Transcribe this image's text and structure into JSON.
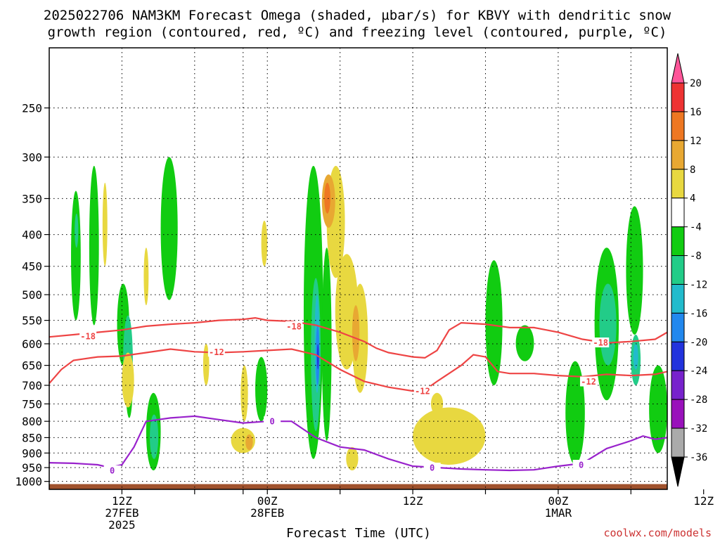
{
  "chart_data": {
    "type": "heatmap",
    "title_lines": [
      "2025022706 NAM3KM Forecast Omega (shaded, µbar/s) for KBVY with dendritic snow",
      "growth region (contoured, red, ºC) and freezing level (contoured, purple, ºC)"
    ],
    "xlabel": "Forecast Time (UTC)",
    "credit": "coolwx.com/models",
    "x_range_hours": [
      6,
      57
    ],
    "x_ticks": [
      {
        "hour": 12,
        "lines": [
          "12Z",
          "27FEB",
          "2025"
        ]
      },
      {
        "hour": 18,
        "lines": []
      },
      {
        "hour": 22,
        "lines": []
      },
      {
        "hour": 24,
        "lines": [
          "00Z",
          "28FEB"
        ]
      },
      {
        "hour": 30,
        "lines": []
      },
      {
        "hour": 36,
        "lines": [
          "12Z"
        ]
      },
      {
        "hour": 42,
        "lines": []
      },
      {
        "hour": 48,
        "lines": [
          "00Z",
          "1MAR"
        ]
      },
      {
        "hour": 54,
        "lines": []
      },
      {
        "hour": 60,
        "lines": [
          "12Z"
        ]
      }
    ],
    "y_axis": "pressure (hPa, log scale)",
    "y_range_hpa": [
      200,
      1030
    ],
    "y_ticks": [
      250,
      300,
      350,
      400,
      450,
      500,
      550,
      600,
      650,
      700,
      750,
      800,
      850,
      900,
      950,
      1000
    ],
    "grid": true,
    "colorbar": {
      "levels": [
        "20",
        "16",
        "12",
        "8",
        "4",
        "-4",
        "-8",
        "-12",
        "-16",
        "-20",
        "-24",
        "-28",
        "-32",
        "-36"
      ],
      "colors": [
        "#ff5599",
        "#ee3333",
        "#ee7722",
        "#e8a832",
        "#e8d840",
        "#ffffff",
        "#11cc11",
        "#22cc88",
        "#22bbcc",
        "#2288ee",
        "#2233dd",
        "#7722cc",
        "#9911bb",
        "#aaaaaa",
        "#000000"
      ]
    },
    "shaded_regions": [
      {
        "color": "#11cc11",
        "t": [
          7.8,
          8.6
        ],
        "p": [
          340,
          550
        ]
      },
      {
        "color": "#11cc11",
        "t": [
          9.3,
          10.1
        ],
        "p": [
          310,
          560
        ]
      },
      {
        "color": "#11cc11",
        "t": [
          11.6,
          12.6
        ],
        "p": [
          480,
          650
        ]
      },
      {
        "color": "#11cc11",
        "t": [
          12.3,
          12.9
        ],
        "p": [
          600,
          790
        ]
      },
      {
        "color": "#11cc11",
        "t": [
          14.0,
          15.2
        ],
        "p": [
          720,
          960
        ]
      },
      {
        "color": "#11cc11",
        "t": [
          15.2,
          16.6
        ],
        "p": [
          300,
          510
        ]
      },
      {
        "color": "#11cc11",
        "t": [
          23.0,
          24.0
        ],
        "p": [
          630,
          800
        ]
      },
      {
        "color": "#11cc11",
        "t": [
          27.0,
          28.6
        ],
        "p": [
          310,
          920
        ]
      },
      {
        "color": "#11cc11",
        "t": [
          28.5,
          29.3
        ],
        "p": [
          420,
          860
        ]
      },
      {
        "color": "#11cc11",
        "t": [
          42.0,
          43.4
        ],
        "p": [
          440,
          700
        ]
      },
      {
        "color": "#11cc11",
        "t": [
          44.5,
          46.0
        ],
        "p": [
          560,
          640
        ]
      },
      {
        "color": "#11cc11",
        "t": [
          48.6,
          50.2
        ],
        "p": [
          640,
          940
        ]
      },
      {
        "color": "#11cc11",
        "t": [
          51.0,
          53.0
        ],
        "p": [
          420,
          740
        ]
      },
      {
        "color": "#11cc11",
        "t": [
          53.6,
          55.0
        ],
        "p": [
          360,
          580
        ]
      },
      {
        "color": "#11cc11",
        "t": [
          55.5,
          57.0
        ],
        "p": [
          650,
          900
        ]
      },
      {
        "color": "#22cc88",
        "t": [
          8.1,
          8.4
        ],
        "p": [
          370,
          420
        ]
      },
      {
        "color": "#22cc88",
        "t": [
          12.1,
          12.9
        ],
        "p": [
          540,
          760
        ]
      },
      {
        "color": "#22cc88",
        "t": [
          14.3,
          15.0
        ],
        "p": [
          780,
          920
        ]
      },
      {
        "color": "#22cc88",
        "t": [
          27.6,
          28.4
        ],
        "p": [
          470,
          830
        ]
      },
      {
        "color": "#22cc88",
        "t": [
          51.4,
          52.8
        ],
        "p": [
          480,
          650
        ]
      },
      {
        "color": "#22cc88",
        "t": [
          54.0,
          54.8
        ],
        "p": [
          580,
          700
        ]
      },
      {
        "color": "#22bbcc",
        "t": [
          12.3,
          12.8
        ],
        "p": [
          650,
          720
        ]
      },
      {
        "color": "#22bbcc",
        "t": [
          27.9,
          28.3
        ],
        "p": [
          500,
          720
        ]
      },
      {
        "color": "#22bbcc",
        "t": [
          54.2,
          54.6
        ],
        "p": [
          600,
          660
        ]
      },
      {
        "color": "#2288ee",
        "t": [
          28.0,
          28.3
        ],
        "p": [
          560,
          700
        ]
      },
      {
        "color": "#2233dd",
        "t": [
          28.1,
          28.25
        ],
        "p": [
          600,
          660
        ]
      },
      {
        "color": "#e8d840",
        "t": [
          10.4,
          10.8
        ],
        "p": [
          330,
          450
        ]
      },
      {
        "color": "#e8d840",
        "t": [
          13.8,
          14.2
        ],
        "p": [
          420,
          520
        ]
      },
      {
        "color": "#e8d840",
        "t": [
          18.7,
          19.2
        ],
        "p": [
          600,
          700
        ]
      },
      {
        "color": "#e8d840",
        "t": [
          21.8,
          22.4
        ],
        "p": [
          650,
          800
        ]
      },
      {
        "color": "#e8d840",
        "t": [
          23.5,
          24.0
        ],
        "p": [
          380,
          450
        ]
      },
      {
        "color": "#e8d840",
        "t": [
          28.9,
          30.4
        ],
        "p": [
          310,
          470
        ]
      },
      {
        "color": "#e8d840",
        "t": [
          29.6,
          31.5
        ],
        "p": [
          430,
          660
        ]
      },
      {
        "color": "#e8d840",
        "t": [
          31.0,
          32.3
        ],
        "p": [
          480,
          720
        ]
      },
      {
        "color": "#e8d840",
        "t": [
          21.0,
          23.0
        ],
        "p": [
          820,
          900
        ]
      },
      {
        "color": "#e8d840",
        "t": [
          36.0,
          42.0
        ],
        "p": [
          760,
          940
        ]
      },
      {
        "color": "#e8d840",
        "t": [
          37.5,
          38.5
        ],
        "p": [
          720,
          780
        ]
      },
      {
        "color": "#e8d840",
        "t": [
          30.5,
          31.5
        ],
        "p": [
          880,
          960
        ]
      },
      {
        "color": "#e8d840",
        "t": [
          12.0,
          13.0
        ],
        "p": [
          620,
          760
        ]
      },
      {
        "color": "#e8a832",
        "t": [
          28.5,
          29.6
        ],
        "p": [
          320,
          390
        ]
      },
      {
        "color": "#e8a832",
        "t": [
          22.2,
          22.8
        ],
        "p": [
          840,
          890
        ]
      },
      {
        "color": "#e8a832",
        "t": [
          31.0,
          31.6
        ],
        "p": [
          520,
          640
        ]
      },
      {
        "color": "#ee7722",
        "t": [
          28.7,
          29.2
        ],
        "p": [
          330,
          370
        ]
      }
    ],
    "contours": [
      {
        "name": "-18",
        "color": "#ee4444",
        "labels": [
          {
            "t": 9.2,
            "p": 583
          },
          {
            "t": 26.2,
            "p": 562
          },
          {
            "t": 51.5,
            "p": 597
          }
        ],
        "points": [
          [
            6,
            585
          ],
          [
            8,
            580
          ],
          [
            10,
            575
          ],
          [
            12,
            570
          ],
          [
            14,
            562
          ],
          [
            16,
            558
          ],
          [
            18,
            555
          ],
          [
            20,
            550
          ],
          [
            22,
            548
          ],
          [
            23,
            545
          ],
          [
            24,
            550
          ],
          [
            26,
            552
          ],
          [
            28,
            560
          ],
          [
            30,
            575
          ],
          [
            32,
            595
          ],
          [
            33,
            610
          ],
          [
            34,
            620
          ],
          [
            35,
            625
          ],
          [
            36,
            630
          ],
          [
            37,
            632
          ],
          [
            38,
            615
          ],
          [
            39,
            570
          ],
          [
            40,
            555
          ],
          [
            42,
            558
          ],
          [
            44,
            565
          ],
          [
            46,
            565
          ],
          [
            48,
            575
          ],
          [
            50,
            590
          ],
          [
            52,
            598
          ],
          [
            54,
            595
          ],
          [
            56,
            590
          ],
          [
            57,
            575
          ]
        ]
      },
      {
        "name": "-12",
        "color": "#ee4444",
        "labels": [
          {
            "t": 19.8,
            "p": 618
          },
          {
            "t": 36.8,
            "p": 715
          },
          {
            "t": 50.5,
            "p": 690
          }
        ],
        "points": [
          [
            6,
            695
          ],
          [
            7,
            660
          ],
          [
            8,
            638
          ],
          [
            10,
            630
          ],
          [
            12,
            628
          ],
          [
            14,
            620
          ],
          [
            16,
            612
          ],
          [
            18,
            618
          ],
          [
            20,
            620
          ],
          [
            22,
            618
          ],
          [
            24,
            615
          ],
          [
            26,
            612
          ],
          [
            28,
            625
          ],
          [
            30,
            660
          ],
          [
            32,
            690
          ],
          [
            34,
            705
          ],
          [
            36,
            715
          ],
          [
            37,
            712
          ],
          [
            38,
            690
          ],
          [
            40,
            650
          ],
          [
            41,
            625
          ],
          [
            42,
            630
          ],
          [
            43,
            665
          ],
          [
            44,
            670
          ],
          [
            46,
            670
          ],
          [
            48,
            675
          ],
          [
            50,
            678
          ],
          [
            52,
            672
          ],
          [
            54,
            675
          ],
          [
            56,
            672
          ],
          [
            57,
            665
          ]
        ]
      },
      {
        "name": "0",
        "color": "#9922cc",
        "labels": [
          {
            "t": 11.2,
            "p": 960
          },
          {
            "t": 24.4,
            "p": 800
          },
          {
            "t": 37.6,
            "p": 950
          },
          {
            "t": 49.9,
            "p": 940
          }
        ],
        "points": [
          [
            6,
            933
          ],
          [
            8,
            935
          ],
          [
            10,
            940
          ],
          [
            11,
            950
          ],
          [
            12,
            940
          ],
          [
            13,
            880
          ],
          [
            14,
            800
          ],
          [
            16,
            790
          ],
          [
            18,
            785
          ],
          [
            20,
            795
          ],
          [
            22,
            805
          ],
          [
            24,
            800
          ],
          [
            26,
            800
          ],
          [
            28,
            850
          ],
          [
            30,
            880
          ],
          [
            32,
            890
          ],
          [
            34,
            920
          ],
          [
            36,
            945
          ],
          [
            38,
            950
          ],
          [
            40,
            955
          ],
          [
            42,
            958
          ],
          [
            44,
            960
          ],
          [
            46,
            958
          ],
          [
            48,
            945
          ],
          [
            50,
            935
          ],
          [
            52,
            885
          ],
          [
            54,
            860
          ],
          [
            55,
            845
          ],
          [
            56,
            855
          ],
          [
            57,
            850
          ]
        ]
      }
    ],
    "surface_color": "#a0522d"
  }
}
